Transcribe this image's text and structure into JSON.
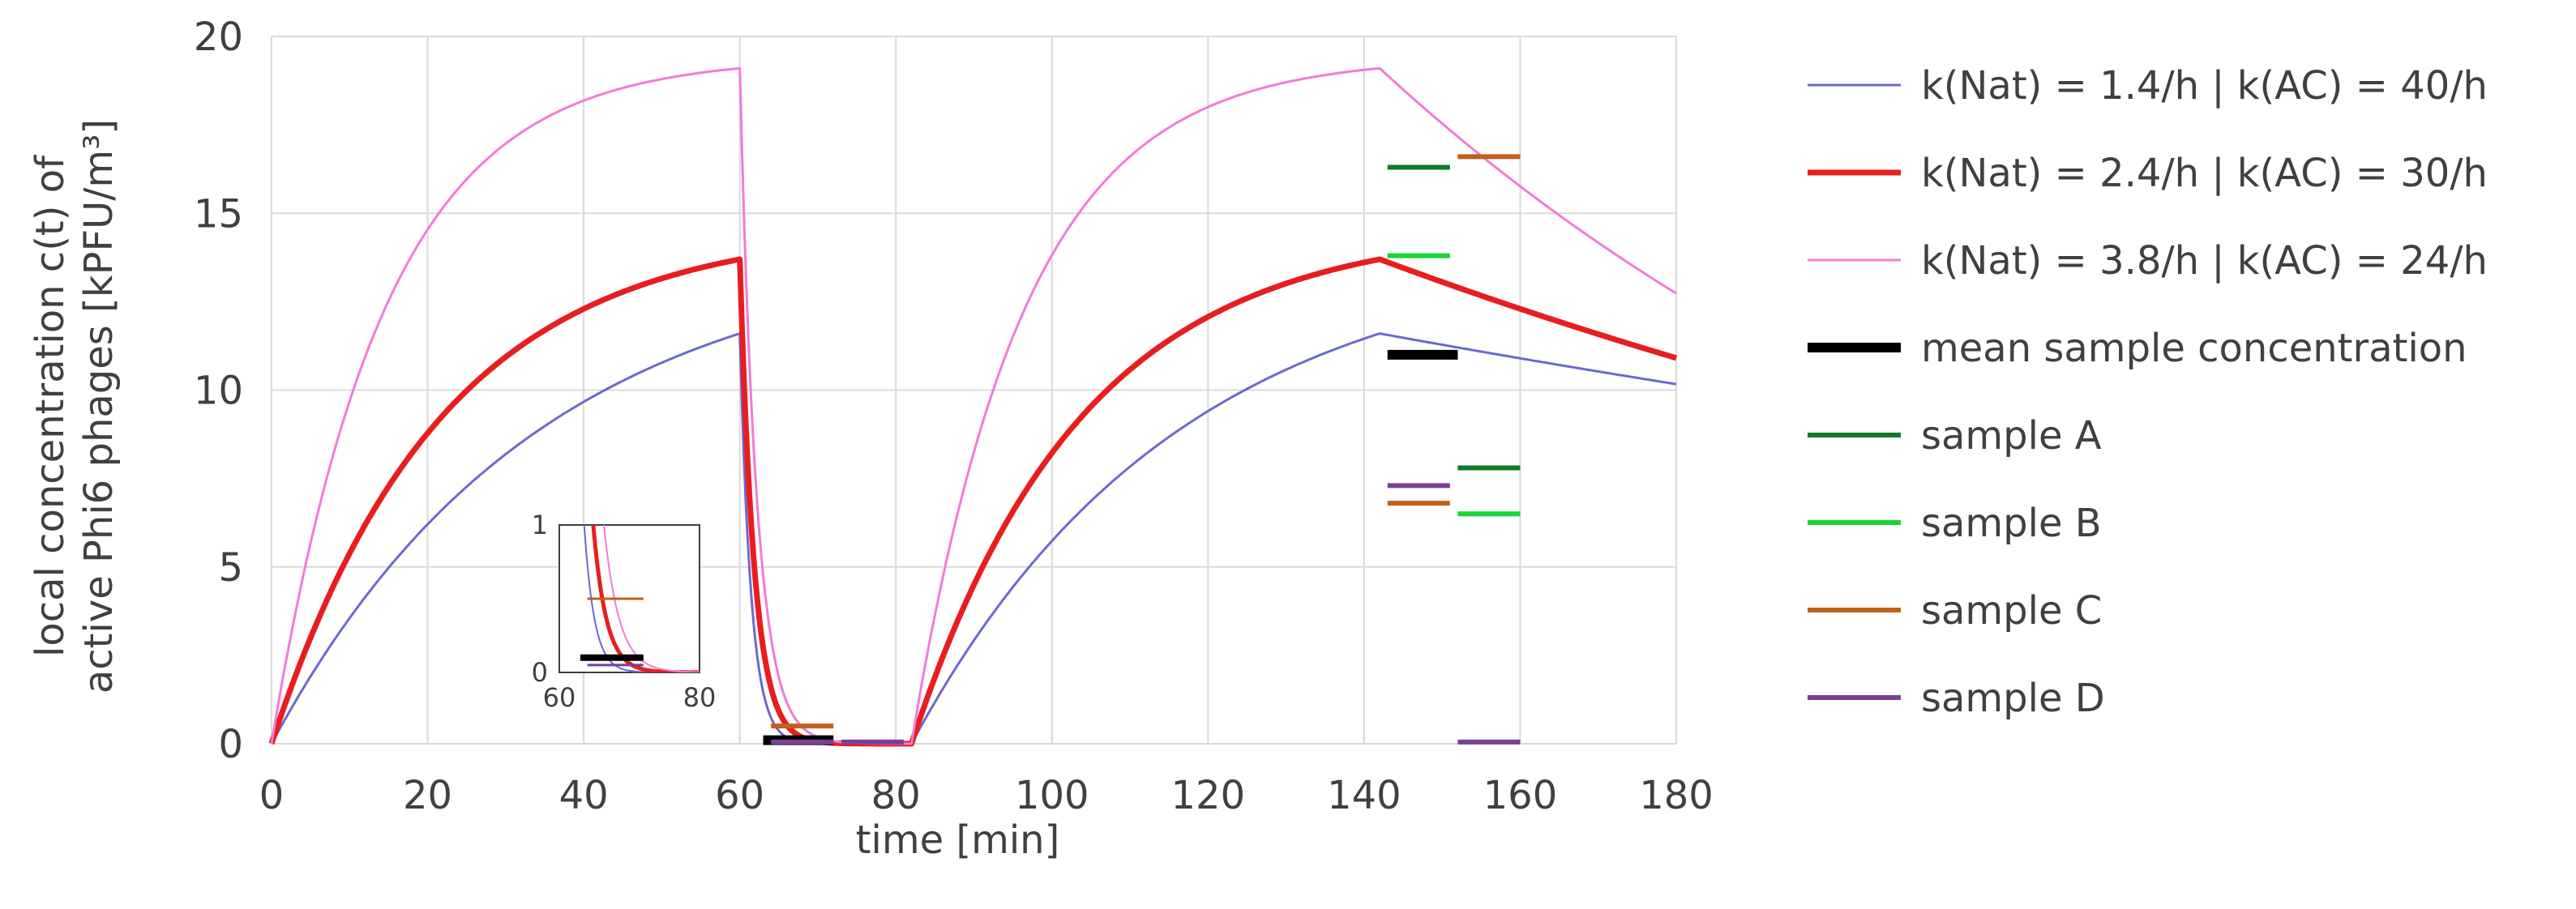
{
  "chart_data": {
    "type": "line",
    "xlabel": "time [min]",
    "ylabel": [
      "local concentration c(t) of",
      "active Phi6 phages [kPFU/m³]"
    ],
    "xlim": [
      0,
      180
    ],
    "ylim": [
      0,
      20
    ],
    "xticks": [
      0,
      20,
      40,
      60,
      80,
      100,
      120,
      140,
      160,
      180
    ],
    "yticks": [
      0,
      5,
      10,
      15,
      20
    ],
    "grid": true,
    "legend_position": "right",
    "model": {
      "fill_intervals": [
        [
          0,
          60
        ],
        [
          82,
          142
        ]
      ],
      "source_cutoff_times": [
        60,
        142
      ]
    },
    "series": [
      {
        "name": "k(Nat) = 1.4/h | k(AC) = 40/h",
        "color": "#6a6ad0",
        "width": 3,
        "k_nat": 1.4,
        "k_ac": 40,
        "c_max": 11.6,
        "decay_after_142": 0.26
      },
      {
        "name": "k(Nat) = 2.4/h | k(AC) = 30/h",
        "color": "#e81e1e",
        "width": 7,
        "k_nat": 2.4,
        "k_ac": 30,
        "c_max": 13.7,
        "decay_after_142": 0.45
      },
      {
        "name": "k(Nat) = 3.8/h | k(AC) = 24/h",
        "color": "#f07cd6",
        "width": 3,
        "k_nat": 3.8,
        "k_ac": 24,
        "c_max": 19.1,
        "decay_after_142": 0.8
      }
    ],
    "samples": [
      {
        "name": "mean sample concentration",
        "color": "#000000",
        "width": 12,
        "segments": [
          {
            "x": [
              63,
              72
            ],
            "y": 0.1
          },
          {
            "x": [
              143,
              152
            ],
            "y": 11.0
          }
        ]
      },
      {
        "name": "sample A",
        "color": "#0f7a2a",
        "width": 6,
        "segments": [
          {
            "x": [
              143,
              151
            ],
            "y": 16.3
          },
          {
            "x": [
              152,
              160
            ],
            "y": 7.8
          }
        ]
      },
      {
        "name": "sample B",
        "color": "#17d634",
        "width": 6,
        "segments": [
          {
            "x": [
              143,
              151
            ],
            "y": 13.8
          },
          {
            "x": [
              152,
              160
            ],
            "y": 6.5
          }
        ]
      },
      {
        "name": "sample C",
        "color": "#c0601a",
        "width": 6,
        "segments": [
          {
            "x": [
              64,
              72
            ],
            "y": 0.5
          },
          {
            "x": [
              143,
              151
            ],
            "y": 6.8
          },
          {
            "x": [
              152,
              160
            ],
            "y": 16.6
          }
        ]
      },
      {
        "name": "sample D",
        "color": "#7a3f96",
        "width": 6,
        "segments": [
          {
            "x": [
              64,
              72
            ],
            "y": 0.05
          },
          {
            "x": [
              73,
              81
            ],
            "y": 0.05
          },
          {
            "x": [
              143,
              151
            ],
            "y": 7.3
          },
          {
            "x": [
              152,
              160
            ],
            "y": 0.05
          }
        ]
      }
    ],
    "inset": {
      "xlim": [
        60,
        80
      ],
      "ylim": [
        0,
        1
      ],
      "xticks": [
        60,
        80
      ],
      "yticks": [
        0,
        1
      ]
    }
  }
}
